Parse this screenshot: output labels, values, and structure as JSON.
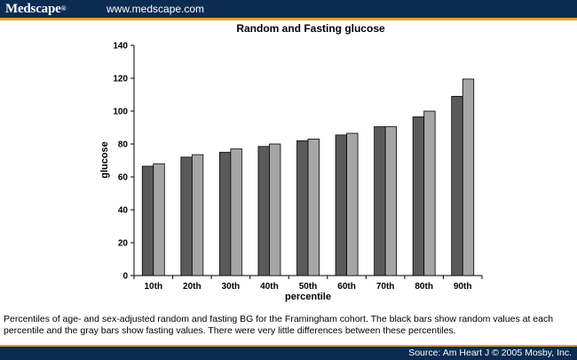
{
  "header": {
    "brand": "Medscape",
    "brand_mark": "®",
    "url": "www.medscape.com"
  },
  "colors": {
    "header_bg": "#0c2b52",
    "accent": "#e5a10f",
    "random_bar": "#5a5a5a",
    "fasting_bar": "#a6a6a6"
  },
  "chart_data": {
    "type": "bar",
    "title": "Random and Fasting glucose",
    "xlabel": "percentile",
    "ylabel": "glucose",
    "categories": [
      "10th",
      "20th",
      "30th",
      "40th",
      "50th",
      "60th",
      "70th",
      "80th",
      "90th"
    ],
    "ylim": [
      0,
      140
    ],
    "yticks": [
      0,
      20,
      40,
      60,
      80,
      100,
      120,
      140
    ],
    "grid": false,
    "legend": "none",
    "series": [
      {
        "values": [
          66.5,
          72,
          75,
          78.5,
          82,
          85.5,
          90.5,
          96.5,
          109
        ],
        "color": "#5a5a5a"
      },
      {
        "values": [
          68,
          73.5,
          77,
          80,
          83,
          86.5,
          90.5,
          100,
          119.5
        ],
        "color": "#a6a6a6"
      }
    ]
  },
  "caption": "Percentiles of age- and sex-adjusted random and fasting BG for the Framingham cohort. The black bars show random values at each percentile and the gray bars show fasting values. There were very little differences between these percentiles.",
  "footer": {
    "source": "Source: Am Heart J © 2005 Mosby, Inc."
  }
}
